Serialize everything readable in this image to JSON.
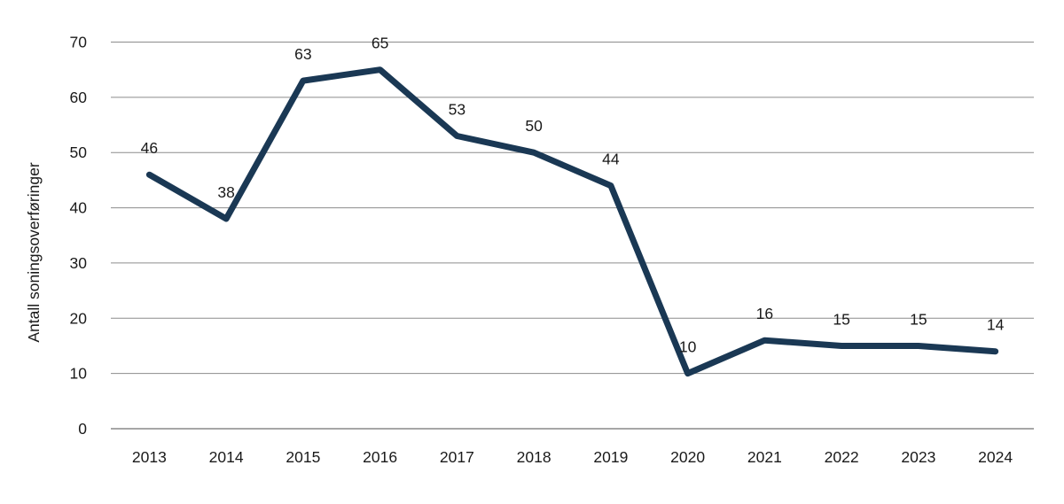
{
  "chart_data": {
    "type": "line",
    "title": "",
    "xlabel": "",
    "ylabel": "Antall soningsoverføringer",
    "categories": [
      "2013",
      "2014",
      "2015",
      "2016",
      "2017",
      "2018",
      "2019",
      "2020",
      "2021",
      "2022",
      "2023",
      "2024"
    ],
    "series": [
      {
        "name": "Antall soningsoverføringer",
        "values": [
          46,
          38,
          63,
          65,
          53,
          50,
          44,
          10,
          16,
          15,
          15,
          14
        ]
      }
    ],
    "data_labels": [
      46,
      38,
      63,
      65,
      53,
      50,
      44,
      10,
      16,
      15,
      15,
      14
    ],
    "yticks": [
      0,
      10,
      20,
      30,
      40,
      50,
      60,
      70
    ],
    "ylim": [
      0,
      70
    ],
    "grid": "horizontal",
    "legend_position": "none",
    "colors": {
      "line": "#1a3854",
      "gridline": "#8c8c8c",
      "zero_axis": "#4d4d4d",
      "text": "#1a1a1a"
    }
  }
}
